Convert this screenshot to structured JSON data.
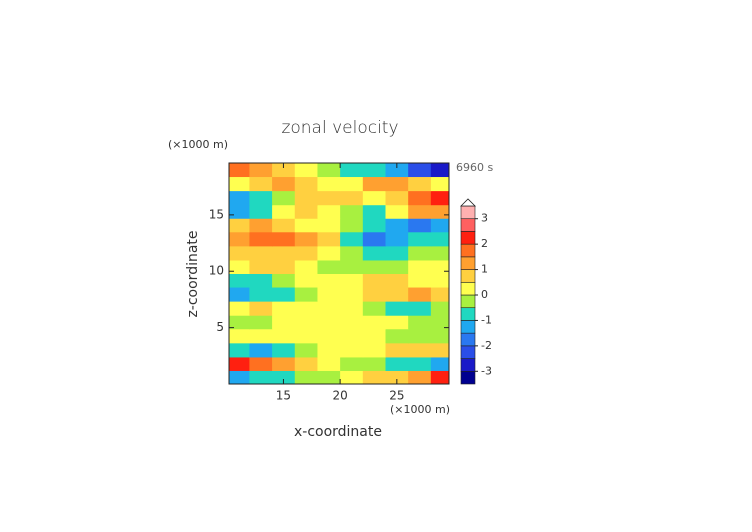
{
  "chart_data": {
    "type": "contourf",
    "title": "zonal velocity",
    "x_unit": "(×1000 m)",
    "y_unit": "(×1000 m)",
    "time_label": "6960 s",
    "xlabel": "x-coordinate",
    "ylabel": "z-coordinate",
    "xlim": [
      10.2,
      29.6
    ],
    "ylim": [
      0,
      19.6
    ],
    "xticks": [
      15,
      20,
      25
    ],
    "yticks": [
      5,
      10,
      15
    ],
    "x": [
      11,
      13,
      15,
      17,
      19,
      21,
      23,
      25,
      27,
      29
    ],
    "y": [
      0.6,
      1.8,
      3.0,
      4.3,
      5.5,
      6.7,
      8.0,
      9.2,
      10.4,
      11.6,
      12.9,
      14.1,
      15.3,
      16.5,
      17.8,
      19.0
    ],
    "z": [
      [
        -1.2,
        -0.8,
        -0.6,
        -0.3,
        -0.2,
        0.3,
        0.6,
        0.9,
        1.4,
        2.2
      ],
      [
        2.3,
        1.6,
        1.2,
        0.8,
        0.4,
        -0.2,
        -0.5,
        -0.7,
        -0.9,
        -1.2
      ],
      [
        -0.7,
        -1.3,
        -0.9,
        -0.3,
        0.2,
        0.2,
        0.4,
        0.7,
        0.9,
        0.8
      ],
      [
        0.3,
        0.4,
        0.3,
        0.1,
        0.2,
        0.3,
        0.1,
        -0.2,
        -0.4,
        -0.3
      ],
      [
        -0.2,
        -0.3,
        0.2,
        0.4,
        0.3,
        0.2,
        0.3,
        0.1,
        -0.2,
        -0.3
      ],
      [
        0.4,
        0.6,
        0.3,
        0.1,
        0.2,
        0.2,
        -0.2,
        -0.6,
        -0.8,
        -0.5
      ],
      [
        -1.2,
        -0.9,
        -0.6,
        -0.2,
        0.3,
        0.2,
        0.6,
        0.9,
        1.2,
        0.8
      ],
      [
        -0.6,
        -0.7,
        -0.4,
        0.2,
        0.3,
        0.3,
        0.5,
        0.6,
        0.4,
        0.3
      ],
      [
        0.4,
        0.6,
        0.5,
        0.2,
        -0.2,
        -0.3,
        -0.5,
        -0.3,
        0.2,
        0.4
      ],
      [
        0.7,
        0.9,
        0.8,
        0.6,
        0.3,
        -0.4,
        -0.8,
        -0.6,
        -0.3,
        -0.2
      ],
      [
        1.3,
        1.6,
        1.8,
        1.2,
        0.5,
        -0.8,
        -1.6,
        -1.4,
        -0.9,
        -0.6
      ],
      [
        0.8,
        1.1,
        0.7,
        0.4,
        0.2,
        -0.3,
        -0.8,
        -1.3,
        -1.6,
        -1.2
      ],
      [
        -1.1,
        -0.8,
        0.3,
        0.6,
        0.4,
        -0.4,
        -0.7,
        0.4,
        1.1,
        1.4
      ],
      [
        -1.4,
        -0.9,
        -0.4,
        0.6,
        0.9,
        0.6,
        0.2,
        0.8,
        1.6,
        2.2
      ],
      [
        0.4,
        0.7,
        1.2,
        0.9,
        0.3,
        0.4,
        1.1,
        1.3,
        0.8,
        0.4
      ],
      [
        1.6,
        1.2,
        0.6,
        0.3,
        -0.2,
        -0.6,
        -0.9,
        -1.4,
        -2.1,
        -2.6
      ]
    ],
    "colorbar": {
      "levels": [
        -3.5,
        -3,
        -2.5,
        -2,
        -1.5,
        -1,
        -0.5,
        0,
        0.5,
        1,
        1.5,
        2,
        2.5,
        3,
        3.5
      ],
      "colors": [
        "#000090",
        "#1a1ac8",
        "#2a4ee8",
        "#2a78f0",
        "#20a8f0",
        "#20d8c0",
        "#a8f040",
        "#ffff50",
        "#ffd040",
        "#ffa030",
        "#ff7020",
        "#ff2010",
        "#ff6060",
        "#ffb0b0"
      ],
      "ticks": [
        -3,
        -2,
        -1,
        0,
        1,
        2,
        3
      ]
    }
  }
}
